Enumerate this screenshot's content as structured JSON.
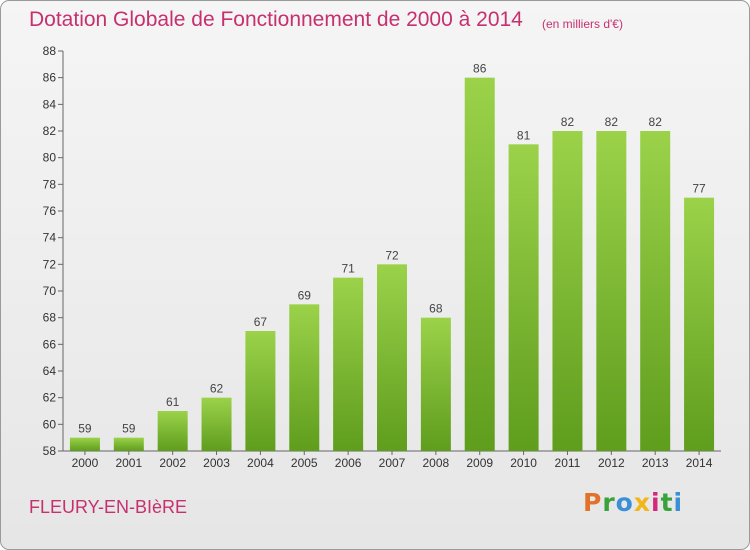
{
  "header": {
    "title": "Dotation Globale de Fonctionnement de 2000 à 2014",
    "subtitle": "(en milliers d'€)"
  },
  "footer": {
    "commune": "FLEURY-EN-BIèRE",
    "logo_text": "Proxiti",
    "logo_colors": [
      "#e2712a",
      "#3aa23a",
      "#3a8fd6",
      "#f2b617",
      "#d6287a",
      "#3aa23a",
      "#3a8fd6"
    ]
  },
  "chart_data": {
    "type": "bar",
    "categories": [
      "2000",
      "2001",
      "2002",
      "2003",
      "2004",
      "2005",
      "2006",
      "2007",
      "2008",
      "2009",
      "2010",
      "2011",
      "2012",
      "2013",
      "2014"
    ],
    "values": [
      59,
      59,
      61,
      62,
      67,
      69,
      71,
      72,
      68,
      86,
      81,
      82,
      82,
      82,
      77
    ],
    "data_labels": [
      "59",
      "59",
      "61",
      "62",
      "67",
      "69",
      "71",
      "72",
      "68",
      "86",
      "81",
      "82",
      "82",
      "82",
      "77"
    ],
    "ylim": [
      58,
      88
    ],
    "yticks": [
      "58",
      "60",
      "62",
      "64",
      "66",
      "68",
      "70",
      "72",
      "74",
      "76",
      "78",
      "80",
      "82",
      "84",
      "86",
      "88"
    ],
    "grid": false,
    "bar_color": "#8dc63f",
    "bar_color_dark": "#5e9c1c"
  }
}
